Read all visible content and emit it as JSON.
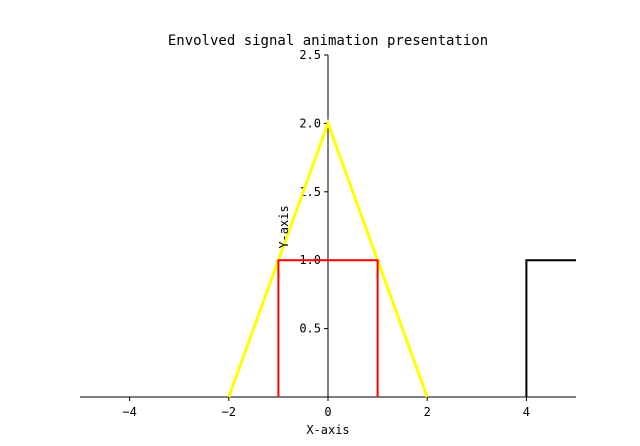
{
  "chart_data": {
    "type": "line",
    "title": "Envolved signal animation presentation",
    "xlabel": "X-axis",
    "ylabel": "Y-axis",
    "xlim": [
      -5,
      5
    ],
    "ylim": [
      0,
      2.5
    ],
    "x_ticks": [
      -4,
      -2,
      0,
      2,
      4
    ],
    "y_ticks": [
      0.5,
      1.0,
      1.5,
      2.0,
      2.5
    ],
    "x_tick_labels": [
      "−4",
      "−2",
      "0",
      "2",
      "4"
    ],
    "y_tick_labels": [
      "0.5",
      "1.0",
      "1.5",
      "2.0",
      "2.5"
    ],
    "grid": false,
    "spines": "centered at origin",
    "series": [
      {
        "color": "#ffff00",
        "points": [
          [
            -2,
            0
          ],
          [
            0,
            2
          ],
          [
            2,
            0
          ]
        ]
      },
      {
        "color": "#ff0000",
        "points": [
          [
            -1,
            0
          ],
          [
            -1,
            1
          ],
          [
            1,
            1
          ],
          [
            1,
            0
          ]
        ]
      },
      {
        "color": "#000000",
        "points": [
          [
            4,
            0
          ],
          [
            4,
            1
          ],
          [
            5,
            1
          ]
        ]
      }
    ]
  }
}
